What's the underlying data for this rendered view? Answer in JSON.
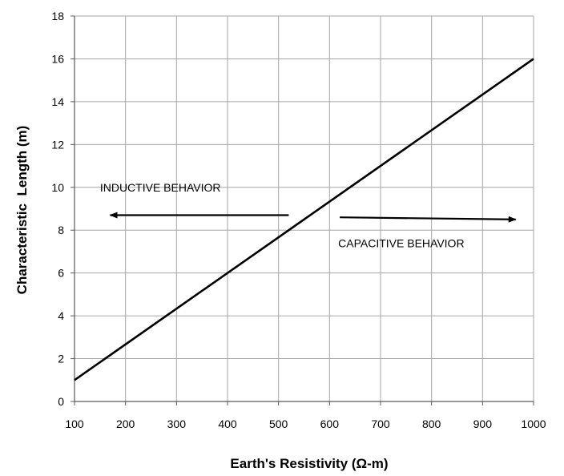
{
  "chart_data": {
    "type": "line",
    "title": "",
    "xlabel": "Earth's Resistivity (Ω-m)",
    "ylabel": "Characteristic  Length (m)",
    "xlim": [
      100,
      1000
    ],
    "ylim": [
      0,
      18
    ],
    "x_ticks": [
      100,
      200,
      300,
      400,
      500,
      600,
      700,
      800,
      900,
      1000
    ],
    "y_ticks": [
      0,
      2,
      4,
      6,
      8,
      10,
      12,
      14,
      16,
      18
    ],
    "grid": true,
    "legend": "none",
    "series": [
      {
        "x": [
          100,
          1000
        ],
        "y": [
          1,
          16
        ],
        "color": "#000000"
      }
    ],
    "annotations": [
      {
        "text": "INDUCTIVE BEHAVIOR",
        "x": 150,
        "y": 9.8,
        "arrow_from": [
          520,
          8.7
        ],
        "arrow_to": [
          170,
          8.7
        ]
      },
      {
        "text": "CAPACITIVE BEHAVIOR",
        "x": 617,
        "y": 7.2,
        "arrow_from": [
          620,
          8.6
        ],
        "arrow_to": [
          965,
          8.5
        ]
      }
    ]
  }
}
